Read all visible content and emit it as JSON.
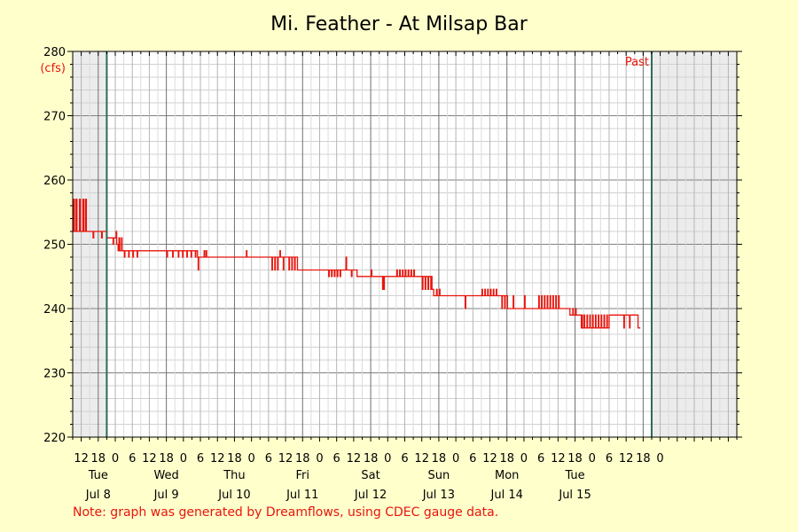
{
  "chart_data": {
    "type": "line",
    "title": "Mi. Feather - At Milsap Bar",
    "y_unit": "(cfs)",
    "ylim": [
      220,
      280
    ],
    "y_ticks": [
      220,
      230,
      240,
      250,
      260,
      270,
      280
    ],
    "x_range_hours": [
      -9,
      225
    ],
    "x_hour_ticks": [
      "12",
      "18",
      "0",
      "6",
      "12",
      "18",
      "0",
      "6",
      "12",
      "18",
      "0",
      "6",
      "12",
      "18",
      "0",
      "6",
      "12",
      "18",
      "0",
      "6",
      "12",
      "18",
      "0",
      "6",
      "12",
      "18",
      "0",
      "6",
      "12",
      "18",
      "0",
      "6",
      "12",
      "18",
      "0"
    ],
    "days": [
      {
        "weekday": "Tue",
        "date": "Jul 8"
      },
      {
        "weekday": "Wed",
        "date": "Jul 9"
      },
      {
        "weekday": "Thu",
        "date": "Jul 10"
      },
      {
        "weekday": "Fri",
        "date": "Jul 11"
      },
      {
        "weekday": "Sat",
        "date": "Jul 12"
      },
      {
        "weekday": "Sun",
        "date": "Jul 13"
      },
      {
        "weekday": "Mon",
        "date": "Jul 14"
      },
      {
        "weekday": "Tue",
        "date": "Jul 15"
      }
    ],
    "past_label": "Past",
    "grid": true,
    "series": [
      {
        "color": "#e8140c",
        "points": [
          [
            -9,
            252
          ],
          [
            -8.7,
            257
          ],
          [
            -8.4,
            252
          ],
          [
            -7.8,
            257
          ],
          [
            -7.5,
            252
          ],
          [
            -6.6,
            257
          ],
          [
            -6.3,
            252
          ],
          [
            -5.4,
            257
          ],
          [
            -5.1,
            252
          ],
          [
            -4.5,
            257
          ],
          [
            -4.2,
            252
          ],
          [
            -2,
            252
          ],
          [
            -1.8,
            251
          ],
          [
            -1.6,
            252
          ],
          [
            1,
            252
          ],
          [
            1.2,
            251
          ],
          [
            1.4,
            252
          ],
          [
            3,
            252
          ],
          [
            3.1,
            251
          ],
          [
            5,
            251
          ],
          [
            5.2,
            250
          ],
          [
            5.4,
            251
          ],
          [
            6,
            251
          ],
          [
            6.3,
            252
          ],
          [
            6.5,
            250
          ],
          [
            7,
            249
          ],
          [
            7.3,
            251
          ],
          [
            7.6,
            249
          ],
          [
            8,
            249
          ],
          [
            8.2,
            251
          ],
          [
            8.4,
            249
          ],
          [
            9,
            249
          ],
          [
            9.2,
            248
          ],
          [
            9.4,
            249
          ],
          [
            10.5,
            249
          ],
          [
            10.7,
            248
          ],
          [
            10.9,
            249
          ],
          [
            12,
            249
          ],
          [
            12.2,
            248
          ],
          [
            12.4,
            249
          ],
          [
            13.5,
            249
          ],
          [
            13.7,
            248
          ],
          [
            13.9,
            249
          ],
          [
            24,
            249
          ],
          [
            24.2,
            248
          ],
          [
            24.4,
            249
          ],
          [
            26,
            249
          ],
          [
            26.2,
            248
          ],
          [
            26.4,
            249
          ],
          [
            28,
            249
          ],
          [
            28.2,
            248
          ],
          [
            28.4,
            249
          ],
          [
            29.5,
            249
          ],
          [
            29.7,
            248
          ],
          [
            29.9,
            249
          ],
          [
            31,
            249
          ],
          [
            31.2,
            248
          ],
          [
            31.4,
            249
          ],
          [
            32.5,
            249
          ],
          [
            32.7,
            248
          ],
          [
            32.9,
            249
          ],
          [
            34,
            249
          ],
          [
            34.2,
            248
          ],
          [
            34.4,
            249
          ],
          [
            35,
            248
          ],
          [
            35.2,
            246
          ],
          [
            35.4,
            248
          ],
          [
            37,
            248
          ],
          [
            37.3,
            249
          ],
          [
            37.5,
            248
          ],
          [
            38,
            249
          ],
          [
            38.2,
            248
          ],
          [
            52,
            248
          ],
          [
            52.2,
            249
          ],
          [
            52.4,
            248
          ],
          [
            61,
            248
          ],
          [
            61.2,
            246
          ],
          [
            61.4,
            248
          ],
          [
            62,
            248
          ],
          [
            62.2,
            246
          ],
          [
            62.4,
            248
          ],
          [
            63,
            248
          ],
          [
            63.2,
            246
          ],
          [
            63.4,
            248
          ],
          [
            64,
            249
          ],
          [
            64.2,
            248
          ],
          [
            65,
            248
          ],
          [
            65.2,
            246
          ],
          [
            65.4,
            248
          ],
          [
            67,
            248
          ],
          [
            67.2,
            246
          ],
          [
            67.4,
            248
          ],
          [
            68,
            248
          ],
          [
            68.2,
            246
          ],
          [
            68.4,
            248
          ],
          [
            69,
            248
          ],
          [
            69.2,
            246
          ],
          [
            69.4,
            248
          ],
          [
            70,
            248
          ],
          [
            70.2,
            246
          ],
          [
            81,
            246
          ],
          [
            81.2,
            245
          ],
          [
            81.4,
            246
          ],
          [
            82,
            246
          ],
          [
            82.2,
            245
          ],
          [
            82.4,
            246
          ],
          [
            83,
            246
          ],
          [
            83.2,
            245
          ],
          [
            83.4,
            246
          ],
          [
            84,
            246
          ],
          [
            84.2,
            245
          ],
          [
            84.4,
            246
          ],
          [
            85,
            246
          ],
          [
            85.2,
            245
          ],
          [
            85.4,
            246
          ],
          [
            87,
            246
          ],
          [
            87.3,
            248
          ],
          [
            87.5,
            246
          ],
          [
            89,
            246
          ],
          [
            89.2,
            245
          ],
          [
            89.4,
            246
          ],
          [
            91,
            246
          ],
          [
            91.2,
            245
          ],
          [
            92,
            245
          ],
          [
            96,
            245
          ],
          [
            96.2,
            246
          ],
          [
            96.4,
            245
          ],
          [
            100,
            245
          ],
          [
            100.2,
            243
          ],
          [
            100.4,
            245
          ],
          [
            100.6,
            243
          ],
          [
            100.8,
            245
          ],
          [
            105,
            245
          ],
          [
            105.2,
            246
          ],
          [
            105.4,
            245
          ],
          [
            106,
            245
          ],
          [
            106.2,
            246
          ],
          [
            106.4,
            245
          ],
          [
            107,
            245
          ],
          [
            107.2,
            246
          ],
          [
            107.4,
            245
          ],
          [
            108,
            245
          ],
          [
            108.2,
            246
          ],
          [
            108.4,
            245
          ],
          [
            109,
            245
          ],
          [
            109.2,
            246
          ],
          [
            109.4,
            245
          ],
          [
            110,
            245
          ],
          [
            110.2,
            246
          ],
          [
            110.4,
            245
          ],
          [
            111,
            245
          ],
          [
            111.2,
            246
          ],
          [
            111.4,
            245
          ],
          [
            114,
            245
          ],
          [
            114.2,
            243
          ],
          [
            114.4,
            245
          ],
          [
            115,
            245
          ],
          [
            115.2,
            243
          ],
          [
            115.4,
            245
          ],
          [
            116,
            245
          ],
          [
            116.2,
            243
          ],
          [
            116.4,
            245
          ],
          [
            117,
            245
          ],
          [
            117.2,
            243
          ],
          [
            117.4,
            245
          ],
          [
            117.6,
            243
          ],
          [
            118,
            243
          ],
          [
            118.2,
            242
          ],
          [
            119,
            242
          ],
          [
            119.2,
            243
          ],
          [
            119.4,
            242
          ],
          [
            120,
            242
          ],
          [
            120.2,
            243
          ],
          [
            120.4,
            242
          ],
          [
            129,
            242
          ],
          [
            129.3,
            240
          ],
          [
            129.5,
            242
          ],
          [
            135,
            242
          ],
          [
            135.2,
            243
          ],
          [
            135.4,
            242
          ],
          [
            136,
            242
          ],
          [
            136.2,
            243
          ],
          [
            136.4,
            242
          ],
          [
            137,
            242
          ],
          [
            137.2,
            243
          ],
          [
            137.4,
            242
          ],
          [
            138,
            242
          ],
          [
            138.2,
            243
          ],
          [
            138.4,
            242
          ],
          [
            139,
            242
          ],
          [
            139.2,
            243
          ],
          [
            139.4,
            242
          ],
          [
            140,
            242
          ],
          [
            140.2,
            243
          ],
          [
            140.4,
            242
          ],
          [
            142,
            242
          ],
          [
            142.2,
            240
          ],
          [
            142.4,
            242
          ],
          [
            143,
            242
          ],
          [
            143.2,
            240
          ],
          [
            143.4,
            242
          ],
          [
            144,
            242
          ],
          [
            144.2,
            240
          ],
          [
            144.6,
            240
          ],
          [
            146,
            240
          ],
          [
            146.2,
            242
          ],
          [
            146.4,
            240
          ],
          [
            150,
            240
          ],
          [
            150.2,
            242
          ],
          [
            150.4,
            240
          ],
          [
            155,
            240
          ],
          [
            155.2,
            242
          ],
          [
            155.4,
            240
          ],
          [
            156,
            240
          ],
          [
            156.2,
            242
          ],
          [
            156.4,
            240
          ],
          [
            157,
            240
          ],
          [
            157.2,
            242
          ],
          [
            157.4,
            240
          ],
          [
            158,
            240
          ],
          [
            158.2,
            242
          ],
          [
            158.4,
            240
          ],
          [
            159,
            240
          ],
          [
            159.2,
            242
          ],
          [
            159.4,
            240
          ],
          [
            160,
            240
          ],
          [
            160.2,
            242
          ],
          [
            160.4,
            240
          ],
          [
            161,
            240
          ],
          [
            161.2,
            242
          ],
          [
            161.4,
            240
          ],
          [
            162,
            240
          ],
          [
            162.2,
            242
          ],
          [
            162.4,
            240
          ],
          [
            166,
            240
          ],
          [
            166.2,
            239
          ],
          [
            167,
            239
          ],
          [
            167.2,
            240
          ],
          [
            167.4,
            239
          ],
          [
            168,
            239
          ],
          [
            168.2,
            240
          ],
          [
            168.4,
            239
          ],
          [
            170,
            239
          ],
          [
            170.2,
            237
          ],
          [
            170.4,
            239
          ],
          [
            170.6,
            237
          ],
          [
            171,
            237
          ],
          [
            171.2,
            239
          ],
          [
            171.4,
            237
          ],
          [
            172,
            237
          ],
          [
            172.2,
            239
          ],
          [
            172.4,
            237
          ],
          [
            173,
            237
          ],
          [
            173.2,
            239
          ],
          [
            173.4,
            237
          ],
          [
            174,
            237
          ],
          [
            174.2,
            239
          ],
          [
            174.4,
            237
          ],
          [
            175,
            237
          ],
          [
            175.2,
            239
          ],
          [
            175.4,
            237
          ],
          [
            176,
            237
          ],
          [
            176.2,
            239
          ],
          [
            176.4,
            237
          ],
          [
            177,
            237
          ],
          [
            177.2,
            239
          ],
          [
            177.4,
            237
          ],
          [
            178,
            237
          ],
          [
            178.2,
            239
          ],
          [
            178.4,
            237
          ],
          [
            179,
            237
          ],
          [
            179.2,
            239
          ],
          [
            179.4,
            237
          ],
          [
            180,
            239
          ],
          [
            185,
            239
          ],
          [
            185.2,
            237
          ],
          [
            185.4,
            239
          ],
          [
            187,
            239
          ],
          [
            187.2,
            237
          ],
          [
            187.4,
            239
          ],
          [
            190,
            239
          ],
          [
            190.2,
            237
          ],
          [
            191,
            237
          ]
        ]
      }
    ]
  },
  "note": "Note: graph was generated by Dreamflows, using CDEC gauge data."
}
